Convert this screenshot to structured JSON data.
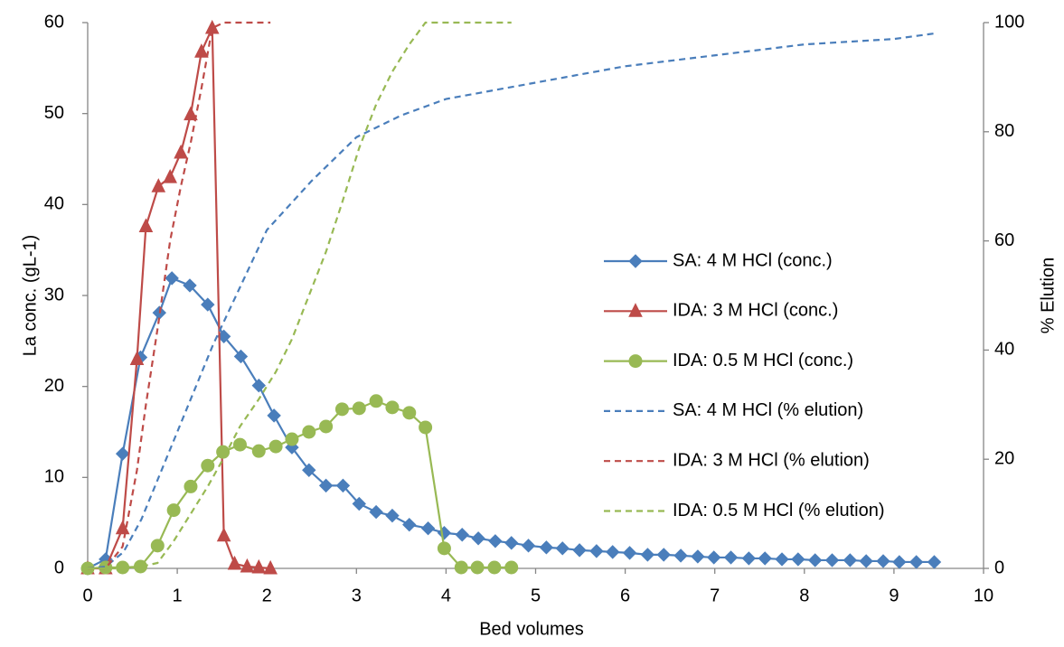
{
  "chart_data": {
    "type": "line",
    "x_label": "Bed volumes",
    "y_label": "La conc. (gL-1)",
    "y2_label": "% Elution",
    "xlim": [
      0,
      10
    ],
    "xticks": [
      0,
      1,
      2,
      3,
      4,
      5,
      6,
      7,
      8,
      9,
      10
    ],
    "ylim": [
      0,
      60
    ],
    "yticks": [
      0,
      10,
      20,
      30,
      40,
      50,
      60
    ],
    "y2lim": [
      0,
      100
    ],
    "y2ticks": [
      0,
      20,
      40,
      60,
      80,
      100
    ],
    "grid": false,
    "legend": "right",
    "series": [
      {
        "name": "SA: 4 M HCl (conc.)",
        "color": "#4a7ebb",
        "marker": "diamond",
        "dash": false,
        "x": [
          0,
          0.2,
          0.39,
          0.59,
          0.8,
          0.94,
          1.14,
          1.34,
          1.52,
          1.71,
          1.91,
          2.08,
          2.28,
          2.47,
          2.66,
          2.85,
          3.03,
          3.22,
          3.4,
          3.59,
          3.8,
          3.98,
          4.18,
          4.36,
          4.55,
          4.73,
          4.92,
          5.12,
          5.3,
          5.49,
          5.68,
          5.86,
          6.05,
          6.25,
          6.43,
          6.62,
          6.81,
          6.99,
          7.18,
          7.38,
          7.56,
          7.75,
          7.93,
          8.12,
          8.31,
          8.51,
          8.69,
          8.88,
          9.06,
          9.25,
          9.45
        ],
        "values": [
          0,
          1.0,
          12.6,
          23.2,
          28.1,
          31.9,
          31.1,
          29.0,
          25.5,
          23.3,
          20.1,
          16.8,
          13.3,
          10.8,
          9.1,
          9.1,
          7.1,
          6.2,
          5.8,
          4.8,
          4.4,
          3.9,
          3.7,
          3.3,
          3.0,
          2.8,
          2.5,
          2.3,
          2.2,
          2.0,
          1.9,
          1.8,
          1.7,
          1.5,
          1.5,
          1.4,
          1.3,
          1.2,
          1.2,
          1.1,
          1.1,
          1.0,
          1.0,
          0.9,
          0.9,
          0.9,
          0.8,
          0.8,
          0.7,
          0.7,
          0.7
        ]
      },
      {
        "name": "IDA: 3 M HCl (conc.)",
        "color": "#be4b48",
        "marker": "triangle",
        "dash": false,
        "x": [
          0,
          0.2,
          0.39,
          0.55,
          0.65,
          0.79,
          0.92,
          1.04,
          1.15,
          1.27,
          1.39,
          1.52,
          1.64,
          1.78,
          1.91,
          2.04
        ],
        "values": [
          0,
          0,
          4.4,
          23,
          37.6,
          42,
          43,
          45.7,
          49.9,
          56.8,
          59.4,
          3.6,
          0.5,
          0.2,
          0.1,
          0
        ]
      },
      {
        "name": "IDA: 0.5 M HCl (conc.)",
        "color": "#98b954",
        "marker": "circle",
        "dash": false,
        "x": [
          0,
          0.2,
          0.39,
          0.59,
          0.78,
          0.96,
          1.15,
          1.34,
          1.51,
          1.7,
          1.91,
          2.1,
          2.28,
          2.47,
          2.66,
          2.84,
          3.03,
          3.22,
          3.4,
          3.59,
          3.77,
          3.98,
          4.17,
          4.35,
          4.54,
          4.73
        ],
        "values": [
          0,
          0.1,
          0.1,
          0.2,
          2.5,
          6.4,
          9.0,
          11.3,
          12.8,
          13.6,
          12.9,
          13.4,
          14.2,
          15.0,
          15.6,
          17.5,
          17.6,
          18.4,
          17.7,
          17.1,
          15.5,
          2.2,
          0.1,
          0.1,
          0.1,
          0.1
        ]
      },
      {
        "name": "SA: 4 M HCl (% elution)",
        "color": "#4a7ebb",
        "marker": "none",
        "dash": true,
        "axis": "y2",
        "x": [
          0,
          0.2,
          0.4,
          0.6,
          0.8,
          1,
          1.2,
          1.4,
          1.6,
          1.8,
          2,
          2.5,
          3,
          3.5,
          4,
          5,
          6,
          7,
          8,
          9,
          9.45
        ],
        "values": [
          0,
          0.3,
          3,
          9,
          17,
          25,
          33,
          41,
          48,
          55,
          62,
          71,
          79,
          83,
          86,
          89,
          92,
          94,
          96,
          97,
          98
        ]
      },
      {
        "name": "IDA: 3 M HCl (% elution)",
        "color": "#be4b48",
        "marker": "none",
        "dash": true,
        "axis": "y2",
        "x": [
          0,
          0.2,
          0.39,
          0.55,
          0.65,
          0.79,
          0.92,
          1.04,
          1.15,
          1.27,
          1.39,
          1.52,
          1.64,
          1.78,
          1.91,
          2.04
        ],
        "values": [
          0,
          0,
          4,
          18,
          30,
          45,
          60,
          70,
          78,
          88,
          99,
          100,
          100,
          100,
          100,
          100
        ]
      },
      {
        "name": "IDA: 0.5 M HCl (% elution)",
        "color": "#98b954",
        "marker": "none",
        "dash": true,
        "axis": "y2",
        "x": [
          0,
          0.2,
          0.39,
          0.59,
          0.78,
          0.96,
          1.15,
          1.34,
          1.51,
          1.7,
          1.91,
          2.1,
          2.28,
          2.47,
          2.66,
          2.84,
          3.03,
          3.22,
          3.4,
          3.59,
          3.77,
          3.98,
          4.17,
          4.35,
          4.54,
          4.73
        ],
        "values": [
          0,
          0,
          0,
          0.3,
          1,
          5,
          10,
          15,
          20,
          26,
          31,
          36,
          42,
          50,
          58,
          67,
          77,
          85,
          91,
          96,
          100,
          100,
          100,
          100,
          100,
          100
        ]
      }
    ]
  }
}
